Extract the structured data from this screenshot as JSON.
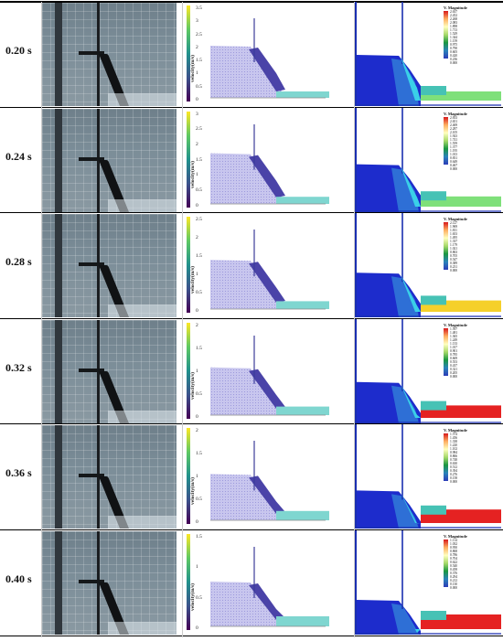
{
  "figure": {
    "rows": [
      {
        "time": "0.20 s",
        "vmax": 3.5,
        "ticks": [
          "3.5",
          "3",
          "2.5",
          "2",
          "1.5",
          "1",
          "0.5",
          "0"
        ],
        "legend_title": "V. Magnitude",
        "legend_values": [
          "2.637",
          "2.452",
          "2.268",
          "2.083",
          "1.898",
          "1.713",
          "1.529",
          "1.344",
          "1.159",
          "0.975",
          "0.790",
          "0.605",
          "0.420",
          "0.236",
          "0.000"
        ]
      },
      {
        "time": "0.24 s",
        "vmax": 3,
        "ticks": [
          "3",
          "2.5",
          "2",
          "1.5",
          "1",
          "0.5",
          "0"
        ],
        "legend_title": "V. Magnitude",
        "legend_values": [
          "2.833",
          "2.651",
          "2.469",
          "2.287",
          "2.105",
          "1.923",
          "1.741",
          "1.559",
          "1.377",
          "1.195",
          "1.013",
          "0.831",
          "0.649",
          "0.467",
          "0.000"
        ]
      },
      {
        "time": "0.28 s",
        "vmax": 2.5,
        "ticks": [
          "2.5",
          "2",
          "1.5",
          "1",
          "0.5",
          "0"
        ],
        "legend_title": "V. Magnitude",
        "legend_values": [
          "2.127",
          "1.969",
          "1.811",
          "1.653",
          "1.495",
          "1.337",
          "1.179",
          "1.021",
          "0.863",
          "0.705",
          "0.547",
          "0.389",
          "0.231",
          "0.000"
        ]
      },
      {
        "time": "0.32 s",
        "vmax": 2,
        "ticks": [
          "2",
          "1.5",
          "1",
          "0.5",
          "0"
        ],
        "legend_title": "V. Magnitude",
        "legend_values": [
          "1.597",
          "1.481",
          "1.365",
          "1.249",
          "1.133",
          "1.017",
          "0.901",
          "0.785",
          "0.669",
          "0.553",
          "0.437",
          "0.321",
          "0.205",
          "0.000"
        ]
      },
      {
        "time": "0.36 s",
        "vmax": 2,
        "ticks": [
          "2",
          "1.5",
          "1",
          "0.5",
          "0"
        ],
        "legend_title": "V. Magnitude",
        "legend_values": [
          "1.574",
          "1.456",
          "1.338",
          "1.220",
          "1.102",
          "0.984",
          "0.866",
          "0.748",
          "0.630",
          "0.512",
          "0.394",
          "0.276",
          "0.158",
          "0.000"
        ]
      },
      {
        "time": "0.40 s",
        "vmax": 1.5,
        "ticks": [
          "1.5",
          "1",
          "0.5",
          "0"
        ],
        "legend_title": "V. Magnitude",
        "legend_values": [
          "1.114",
          "1.032",
          "0.950",
          "0.868",
          "0.786",
          "0.704",
          "0.622",
          "0.540",
          "0.458",
          "0.376",
          "0.294",
          "0.212",
          "0.130",
          "0.000"
        ]
      }
    ],
    "sph_ylabel": "velocity(m/s)"
  }
}
